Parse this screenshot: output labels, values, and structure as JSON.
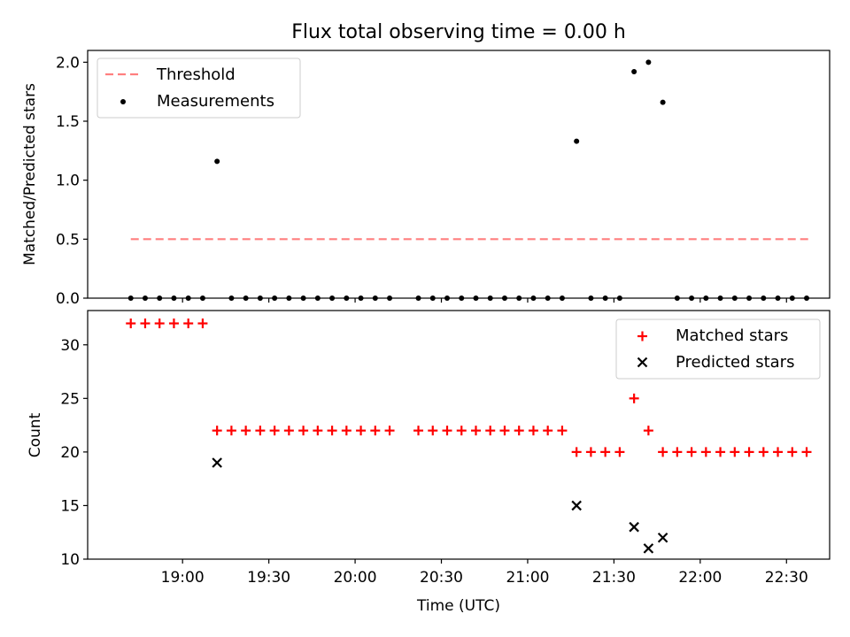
{
  "figure": {
    "title": "Flux total observing time = 0.00 h",
    "xlabel": "Time (UTC)"
  },
  "colors": {
    "threshold": "#ff7f7f",
    "measurement": "#000000",
    "matched": "#ff0000",
    "predicted": "#000000",
    "axes": "#000000"
  },
  "chart_data": [
    {
      "type": "scatter",
      "panel": "top",
      "ylabel": "Matched/Predicted stars",
      "ylim": [
        0,
        2.1
      ],
      "yticks": [
        0.0,
        0.5,
        1.0,
        1.5,
        2.0
      ],
      "ytick_labels": [
        "0.0",
        "0.5",
        "1.0",
        "1.5",
        "2.0"
      ],
      "xlim": [
        "18:27",
        "22:45"
      ],
      "x_ticks_shown": false,
      "legend": {
        "placement": "upper-left",
        "entries": [
          {
            "label": "Threshold",
            "style": "dashed-line"
          },
          {
            "label": "Measurements",
            "style": "dot"
          }
        ]
      },
      "series": [
        {
          "name": "Threshold",
          "kind": "line",
          "x": [
            "18:42",
            "22:38"
          ],
          "y": [
            0.5,
            0.5
          ]
        },
        {
          "name": "Measurements",
          "kind": "scatter",
          "points": [
            [
              "18:42",
              0
            ],
            [
              "18:47",
              0
            ],
            [
              "18:52",
              0
            ],
            [
              "18:57",
              0
            ],
            [
              "19:02",
              0
            ],
            [
              "19:07",
              0
            ],
            [
              "19:12",
              1.16
            ],
            [
              "19:17",
              0
            ],
            [
              "19:22",
              0
            ],
            [
              "19:27",
              0
            ],
            [
              "19:32",
              0
            ],
            [
              "19:37",
              0
            ],
            [
              "19:42",
              0
            ],
            [
              "19:47",
              0
            ],
            [
              "19:52",
              0
            ],
            [
              "19:57",
              0
            ],
            [
              "20:02",
              0
            ],
            [
              "20:07",
              0
            ],
            [
              "20:12",
              0
            ],
            [
              "20:22",
              0
            ],
            [
              "20:27",
              0
            ],
            [
              "20:32",
              0
            ],
            [
              "20:37",
              0
            ],
            [
              "20:42",
              0
            ],
            [
              "20:47",
              0
            ],
            [
              "20:52",
              0
            ],
            [
              "20:57",
              0
            ],
            [
              "21:02",
              0
            ],
            [
              "21:07",
              0
            ],
            [
              "21:12",
              0
            ],
            [
              "21:17",
              1.33
            ],
            [
              "21:22",
              0
            ],
            [
              "21:27",
              0
            ],
            [
              "21:32",
              0
            ],
            [
              "21:37",
              1.92
            ],
            [
              "21:42",
              2.0
            ],
            [
              "21:47",
              1.66
            ],
            [
              "21:52",
              0
            ],
            [
              "21:57",
              0
            ],
            [
              "22:02",
              0
            ],
            [
              "22:07",
              0
            ],
            [
              "22:12",
              0
            ],
            [
              "22:17",
              0
            ],
            [
              "22:22",
              0
            ],
            [
              "22:27",
              0
            ],
            [
              "22:32",
              0
            ],
            [
              "22:37",
              0
            ]
          ]
        }
      ]
    },
    {
      "type": "scatter",
      "panel": "bottom",
      "ylabel": "Count",
      "ylim": [
        10,
        33.2
      ],
      "yticks": [
        10,
        15,
        20,
        25,
        30
      ],
      "ytick_labels": [
        "10",
        "15",
        "20",
        "25",
        "30"
      ],
      "xlim": [
        "18:27",
        "22:45"
      ],
      "xticks": [
        "19:00",
        "19:30",
        "20:00",
        "20:30",
        "21:00",
        "21:30",
        "22:00",
        "22:30"
      ],
      "legend": {
        "placement": "upper-right",
        "entries": [
          {
            "label": "Matched stars",
            "style": "plus"
          },
          {
            "label": "Predicted stars",
            "style": "cross"
          }
        ]
      },
      "series": [
        {
          "name": "Matched stars",
          "marker": "plus",
          "points": [
            [
              "18:42",
              32
            ],
            [
              "18:47",
              32
            ],
            [
              "18:52",
              32
            ],
            [
              "18:57",
              32
            ],
            [
              "19:02",
              32
            ],
            [
              "19:07",
              32
            ],
            [
              "19:12",
              22
            ],
            [
              "19:17",
              22
            ],
            [
              "19:22",
              22
            ],
            [
              "19:27",
              22
            ],
            [
              "19:32",
              22
            ],
            [
              "19:37",
              22
            ],
            [
              "19:42",
              22
            ],
            [
              "19:47",
              22
            ],
            [
              "19:52",
              22
            ],
            [
              "19:57",
              22
            ],
            [
              "20:02",
              22
            ],
            [
              "20:07",
              22
            ],
            [
              "20:12",
              22
            ],
            [
              "20:22",
              22
            ],
            [
              "20:27",
              22
            ],
            [
              "20:32",
              22
            ],
            [
              "20:37",
              22
            ],
            [
              "20:42",
              22
            ],
            [
              "20:47",
              22
            ],
            [
              "20:52",
              22
            ],
            [
              "20:57",
              22
            ],
            [
              "21:02",
              22
            ],
            [
              "21:07",
              22
            ],
            [
              "21:12",
              22
            ],
            [
              "21:17",
              20
            ],
            [
              "21:22",
              20
            ],
            [
              "21:27",
              20
            ],
            [
              "21:32",
              20
            ],
            [
              "21:37",
              25
            ],
            [
              "21:42",
              22
            ],
            [
              "21:47",
              20
            ],
            [
              "21:52",
              20
            ],
            [
              "21:57",
              20
            ],
            [
              "22:02",
              20
            ],
            [
              "22:07",
              20
            ],
            [
              "22:12",
              20
            ],
            [
              "22:17",
              20
            ],
            [
              "22:22",
              20
            ],
            [
              "22:27",
              20
            ],
            [
              "22:32",
              20
            ],
            [
              "22:37",
              20
            ]
          ]
        },
        {
          "name": "Predicted stars",
          "marker": "cross",
          "points": [
            [
              "19:12",
              19
            ],
            [
              "21:17",
              15
            ],
            [
              "21:37",
              13
            ],
            [
              "21:42",
              11
            ],
            [
              "21:47",
              12
            ]
          ]
        }
      ]
    }
  ]
}
